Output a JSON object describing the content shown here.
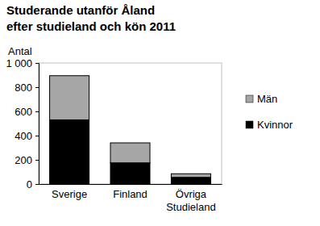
{
  "chart_data": {
    "type": "bar",
    "stacked": true,
    "title": "Studerande utanför Åland\nefter studieland och kön 2011",
    "y_label": "Antal",
    "categories": [
      "Sverige",
      "Finland",
      "Övriga\nStudieland"
    ],
    "series": [
      {
        "name": "Kvinnor",
        "color": "#000000",
        "values": [
          530,
          175,
          55
        ]
      },
      {
        "name": "Män",
        "color": "#a6a6a6",
        "values": [
          365,
          165,
          30
        ]
      }
    ],
    "ylim": [
      0,
      1000
    ],
    "yticks": [
      0,
      200,
      400,
      600,
      800,
      {
        "value": 1000,
        "label": "1 000"
      }
    ],
    "grid": false,
    "legend": "right"
  }
}
